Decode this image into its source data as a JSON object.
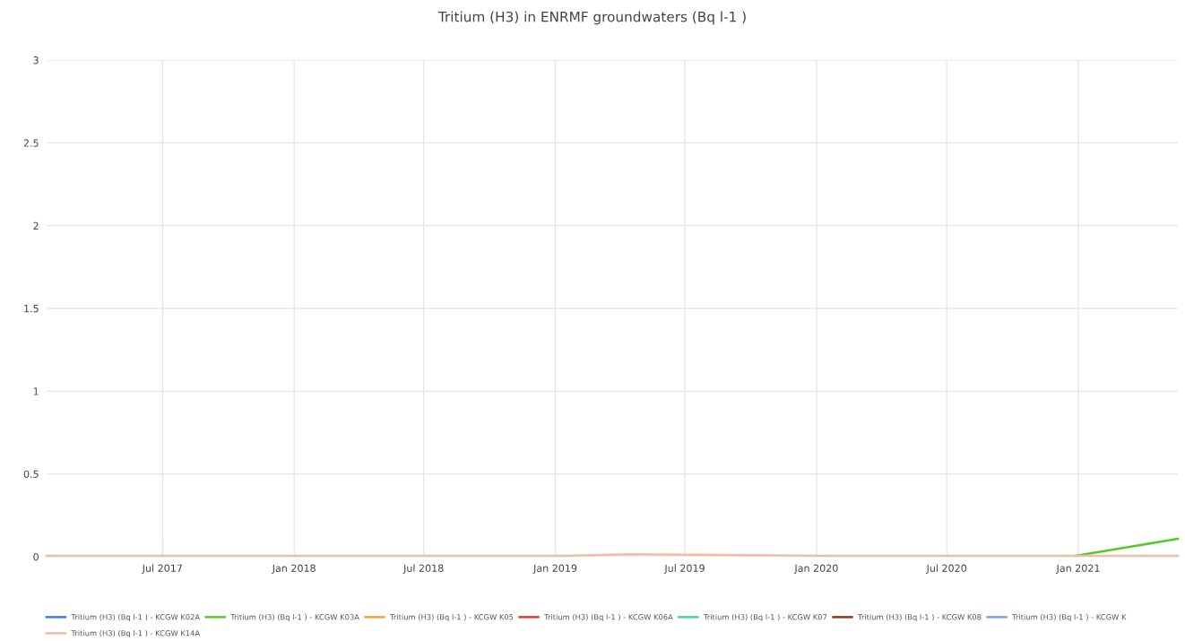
{
  "chart_data": {
    "type": "line",
    "title": "Tritium (H3) in ENRMF groundwaters (Bq l-1 )",
    "x": [
      "2017-01-20",
      "2017-07-15",
      "2018-01-15",
      "2018-07-15",
      "2019-01-15",
      "2019-04-15",
      "2019-07-15",
      "2020-01-15",
      "2020-07-15",
      "2020-12-28",
      "2021-05-20"
    ],
    "series": [
      {
        "name": "Tritium (H3) (Bq l-1 ) - KCGW K02A",
        "color": "#3b7ded",
        "values": [
          null,
          null,
          null,
          null,
          null,
          null,
          null,
          null,
          null,
          null,
          null
        ]
      },
      {
        "name": "Tritium (H3) (Bq l-1 ) - KCGW K03A",
        "color": "#56c82c",
        "values": [
          null,
          null,
          null,
          null,
          null,
          null,
          null,
          null,
          null,
          0.005,
          0.108
        ]
      },
      {
        "name": "Tritium (H3) (Bq l-1 ) - KCGW K05",
        "color": "#f6a532",
        "values": [
          null,
          null,
          null,
          null,
          null,
          null,
          null,
          null,
          null,
          null,
          null
        ]
      },
      {
        "name": "Tritium (H3) (Bq l-1 ) - KCGW K06A",
        "color": "#e8392e",
        "values": [
          null,
          null,
          null,
          null,
          null,
          null,
          null,
          null,
          null,
          null,
          null
        ]
      },
      {
        "name": "Tritium (H3) (Bq l-1 ) - KCGW K07",
        "color": "#3fd69a",
        "values": [
          null,
          null,
          null,
          null,
          null,
          null,
          null,
          null,
          null,
          null,
          null
        ]
      },
      {
        "name": "Tritium (H3) (Bq l-1 ) - KCGW K08",
        "color": "#8b3b16",
        "values": [
          null,
          null,
          null,
          null,
          null,
          null,
          null,
          null,
          null,
          null,
          null
        ]
      },
      {
        "name": "Tritium (H3) (Bq l-1 ) - KCGW K",
        "color": "#7f9cf5",
        "values": [
          null,
          null,
          null,
          null,
          null,
          null,
          null,
          null,
          null,
          null,
          null
        ]
      },
      {
        "name": "Tritium (H3) (Bq l-1 ) - KCGW K14A",
        "color": "#eebda2",
        "values": [
          0.005,
          0.005,
          0.005,
          0.005,
          0.005,
          0.015,
          0.012,
          0.005,
          0.005,
          0.005,
          0.005
        ]
      }
    ],
    "xlim": [
      "2017-01-20",
      "2021-05-20"
    ],
    "xticks": [
      {
        "value": "2017-07-01",
        "label": "Jul 2017"
      },
      {
        "value": "2018-01-01",
        "label": "Jan 2018"
      },
      {
        "value": "2018-07-01",
        "label": "Jul 2018"
      },
      {
        "value": "2019-01-01",
        "label": "Jan 2019"
      },
      {
        "value": "2019-07-01",
        "label": "Jul 2019"
      },
      {
        "value": "2020-01-01",
        "label": "Jan 2020"
      },
      {
        "value": "2020-07-01",
        "label": "Jul 2020"
      },
      {
        "value": "2021-01-01",
        "label": "Jan 2021"
      }
    ],
    "ylim": [
      0,
      3
    ],
    "yticks": [
      0,
      0.5,
      1,
      1.5,
      2,
      2.5,
      3
    ],
    "grid": true,
    "legend": "bottom",
    "marker": "none",
    "line_style": "solid"
  }
}
